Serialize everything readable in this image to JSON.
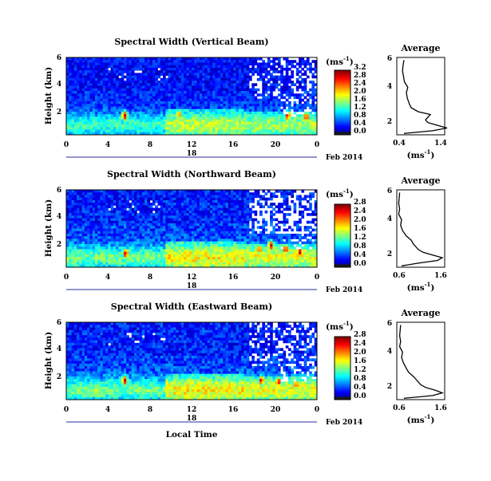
{
  "chart_data": [
    {
      "type": "heatmap",
      "title": "Spectral Width (Vertical Beam)",
      "ylabel": "Height (km)",
      "x_ticks": [
        "0",
        "4",
        "8",
        "12",
        "16",
        "20",
        "0"
      ],
      "y_ticks": [
        "2",
        "4",
        "6"
      ],
      "date_day": "18",
      "date_label": "Feb 2014",
      "colorbar": {
        "unit": "(ms",
        "unit_exp": "-1",
        "unit_close": ")",
        "ticks": [
          "0.0",
          "0.4",
          "0.8",
          "1.2",
          "1.6",
          "2.0",
          "2.4",
          "2.8",
          "3.2"
        ],
        "range": [
          0.0,
          3.4
        ]
      },
      "hot_spots": [
        {
          "t": 5.6,
          "z": 1.7,
          "v": 3.2
        },
        {
          "t": 10.8,
          "z": 1.8,
          "v": 2.6
        },
        {
          "t": 21.2,
          "z": 1.7,
          "v": 3.0
        },
        {
          "t": 23.0,
          "z": 1.6,
          "v": 3.0
        }
      ],
      "average_profile": {
        "title": "Average",
        "xlabel": "(ms",
        "xlabel_exp": "-1",
        "xlabel_close": ")",
        "x_ticks": [
          "0.4",
          "1.4"
        ],
        "xlim": [
          0.4,
          1.4
        ],
        "y_ticks": [
          "2",
          "4",
          "6"
        ],
        "ylim": [
          0.3,
          6.0
        ],
        "height": [
          0.4,
          0.6,
          0.8,
          1.0,
          1.2,
          1.4,
          1.6,
          1.8,
          2.0,
          2.3,
          2.6,
          3.0,
          3.4,
          3.8,
          4.2,
          4.6,
          5.0,
          5.4,
          5.8
        ],
        "value": [
          0.55,
          1.15,
          1.45,
          1.25,
          1.05,
          1.0,
          1.05,
          1.1,
          0.85,
          0.7,
          0.66,
          0.62,
          0.6,
          0.63,
          0.56,
          0.54,
          0.52,
          0.53,
          0.55
        ]
      }
    },
    {
      "type": "heatmap",
      "title": "Spectral Width (Northward Beam)",
      "ylabel": "Height (km)",
      "x_ticks": [
        "0",
        "4",
        "8",
        "12",
        "16",
        "20",
        "0"
      ],
      "y_ticks": [
        "2",
        "4",
        "6"
      ],
      "date_day": "18",
      "date_label": "Feb 2014",
      "colorbar": {
        "unit": "(ms",
        "unit_exp": "-1",
        "unit_close": ")",
        "ticks": [
          "0.0",
          "0.4",
          "0.8",
          "1.2",
          "1.6",
          "2.0",
          "2.4",
          "2.8"
        ],
        "range": [
          0.0,
          3.0
        ]
      },
      "hot_spots": [
        {
          "t": 5.7,
          "z": 1.3,
          "v": 2.8
        },
        {
          "t": 18.5,
          "z": 1.6,
          "v": 2.5
        },
        {
          "t": 19.6,
          "z": 1.9,
          "v": 2.8
        },
        {
          "t": 21.0,
          "z": 1.6,
          "v": 2.7
        },
        {
          "t": 22.4,
          "z": 1.4,
          "v": 2.8
        }
      ],
      "average_profile": {
        "title": "Average",
        "xlabel": "(ms",
        "xlabel_exp": "-1",
        "xlabel_close": ")",
        "x_ticks": [
          "0.6",
          "1.6"
        ],
        "xlim": [
          0.6,
          1.6
        ],
        "y_ticks": [
          "2",
          "4",
          "6"
        ],
        "ylim": [
          0.3,
          6.0
        ],
        "height": [
          0.4,
          0.6,
          0.8,
          1.0,
          1.2,
          1.4,
          1.6,
          1.8,
          2.0,
          2.3,
          2.6,
          3.0,
          3.4,
          3.8,
          4.2,
          4.6,
          5.0,
          5.4,
          5.8
        ],
        "value": [
          0.7,
          1.05,
          1.45,
          1.55,
          1.35,
          1.15,
          1.05,
          1.0,
          0.95,
          0.9,
          0.8,
          0.72,
          0.68,
          0.7,
          0.64,
          0.66,
          0.64,
          0.65,
          0.66
        ]
      }
    },
    {
      "type": "heatmap",
      "title": "Spectral Width (Eastward Beam)",
      "ylabel": "Height (km)",
      "xlabel": "Local Time",
      "x_ticks": [
        "0",
        "4",
        "8",
        "12",
        "16",
        "20",
        "0"
      ],
      "y_ticks": [
        "2",
        "4",
        "6"
      ],
      "date_day": "18",
      "date_label": "Feb 2014",
      "colorbar": {
        "unit": "(ms",
        "unit_exp": "-1",
        "unit_close": ")",
        "ticks": [
          "0.0",
          "0.4",
          "0.8",
          "1.2",
          "1.6",
          "2.0",
          "2.4",
          "2.8"
        ],
        "range": [
          0.0,
          3.0
        ]
      },
      "hot_spots": [
        {
          "t": 5.6,
          "z": 1.7,
          "v": 2.8
        },
        {
          "t": 18.7,
          "z": 1.7,
          "v": 2.7
        },
        {
          "t": 20.3,
          "z": 1.6,
          "v": 2.7
        },
        {
          "t": 22.0,
          "z": 1.4,
          "v": 2.5
        }
      ],
      "average_profile": {
        "title": "Average",
        "xlabel": "(ms",
        "xlabel_exp": "-1",
        "xlabel_close": ")",
        "x_ticks": [
          "0.6",
          "1.6"
        ],
        "xlim": [
          0.6,
          1.6
        ],
        "y_ticks": [
          "2",
          "4",
          "6"
        ],
        "ylim": [
          0.3,
          6.0
        ],
        "height": [
          0.4,
          0.6,
          0.8,
          1.0,
          1.2,
          1.4,
          1.6,
          1.8,
          2.0,
          2.3,
          2.6,
          3.0,
          3.4,
          3.8,
          4.2,
          4.6,
          5.0,
          5.4,
          5.8
        ],
        "value": [
          0.75,
          1.35,
          1.55,
          1.4,
          1.2,
          1.1,
          1.05,
          1.0,
          0.95,
          0.85,
          0.8,
          0.74,
          0.7,
          0.72,
          0.66,
          0.68,
          0.66,
          0.67,
          0.68
        ]
      }
    }
  ]
}
